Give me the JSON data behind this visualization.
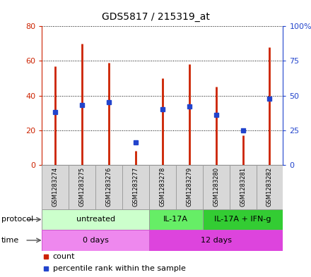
{
  "title": "GDS5817 / 215319_at",
  "samples": [
    "GSM1283274",
    "GSM1283275",
    "GSM1283276",
    "GSM1283277",
    "GSM1283278",
    "GSM1283279",
    "GSM1283280",
    "GSM1283281",
    "GSM1283282"
  ],
  "counts": [
    57,
    70,
    59,
    8,
    50,
    58,
    45,
    17,
    68
  ],
  "percentiles": [
    38,
    43,
    45,
    16,
    40,
    42,
    36,
    25,
    48
  ],
  "ylim_left": [
    0,
    80
  ],
  "ylim_right": [
    0,
    100
  ],
  "yticks_left": [
    0,
    20,
    40,
    60,
    80
  ],
  "yticks_right": [
    0,
    25,
    50,
    75,
    100
  ],
  "ytick_labels_right": [
    "0",
    "25",
    "50",
    "75",
    "100%"
  ],
  "bar_color": "#cc2200",
  "dot_color": "#2244cc",
  "protocol_groups": [
    {
      "label": "untreated",
      "start": 0,
      "end": 4,
      "color": "#ccffcc",
      "border": "#999999"
    },
    {
      "label": "IL-17A",
      "start": 4,
      "end": 6,
      "color": "#66ee66",
      "border": "#999999"
    },
    {
      "label": "IL-17A + IFN-g",
      "start": 6,
      "end": 9,
      "color": "#33cc33",
      "border": "#999999"
    }
  ],
  "time_groups": [
    {
      "label": "0 days",
      "start": 0,
      "end": 4,
      "color": "#ee88ee",
      "border": "#cc55cc"
    },
    {
      "label": "12 days",
      "start": 4,
      "end": 9,
      "color": "#dd44dd",
      "border": "#cc55cc"
    }
  ],
  "bg_color": "#ffffff",
  "title_fontsize": 10,
  "tick_fontsize": 8,
  "sample_fontsize": 6,
  "row_label_fontsize": 8,
  "row_text_fontsize": 8,
  "legend_fontsize": 8
}
